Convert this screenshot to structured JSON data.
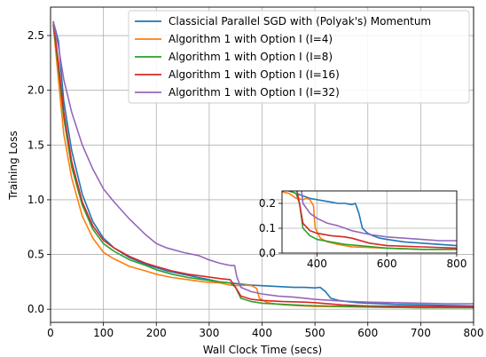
{
  "chart_data": {
    "type": "line",
    "title": "",
    "xlabel": "Wall Clock Time (secs)",
    "ylabel": "Training Loss",
    "xlim": [
      0,
      800
    ],
    "ylim": [
      -0.12,
      2.76
    ],
    "xticks": [
      0,
      100,
      200,
      300,
      400,
      500,
      600,
      700,
      800
    ],
    "yticks": [
      0.0,
      0.5,
      1.0,
      1.5,
      2.0,
      2.5
    ],
    "xtick_labels": [
      "0",
      "100",
      "200",
      "300",
      "400",
      "500",
      "600",
      "700",
      "800"
    ],
    "ytick_labels": [
      "0.0",
      "0.5",
      "1.0",
      "1.5",
      "2.0",
      "2.5"
    ],
    "grid": true,
    "legend": "top-right",
    "series": [
      {
        "name": "Classicial Parallel SGD with (Polyak's) Momentum",
        "color": "#1f77b4",
        "points": [
          [
            5,
            2.63
          ],
          [
            15,
            2.45
          ],
          [
            25,
            1.9
          ],
          [
            40,
            1.45
          ],
          [
            60,
            1.05
          ],
          [
            80,
            0.8
          ],
          [
            100,
            0.65
          ],
          [
            120,
            0.56
          ],
          [
            150,
            0.47
          ],
          [
            180,
            0.41
          ],
          [
            200,
            0.38
          ],
          [
            220,
            0.35
          ],
          [
            250,
            0.32
          ],
          [
            280,
            0.29
          ],
          [
            300,
            0.27
          ],
          [
            320,
            0.25
          ],
          [
            340,
            0.24
          ],
          [
            360,
            0.23
          ],
          [
            380,
            0.22
          ],
          [
            400,
            0.215
          ],
          [
            420,
            0.21
          ],
          [
            440,
            0.205
          ],
          [
            460,
            0.2
          ],
          [
            480,
            0.2
          ],
          [
            500,
            0.195
          ],
          [
            510,
            0.2
          ],
          [
            520,
            0.16
          ],
          [
            530,
            0.1
          ],
          [
            545,
            0.08
          ],
          [
            560,
            0.07
          ],
          [
            580,
            0.06
          ],
          [
            600,
            0.055
          ],
          [
            650,
            0.045
          ],
          [
            700,
            0.04
          ],
          [
            750,
            0.035
          ],
          [
            800,
            0.03
          ]
        ]
      },
      {
        "name": "Algorithm 1 with Option I (I=4)",
        "color": "#ff7f0e",
        "points": [
          [
            5,
            2.6
          ],
          [
            15,
            2.1
          ],
          [
            25,
            1.6
          ],
          [
            40,
            1.2
          ],
          [
            60,
            0.85
          ],
          [
            80,
            0.65
          ],
          [
            100,
            0.52
          ],
          [
            120,
            0.46
          ],
          [
            150,
            0.39
          ],
          [
            180,
            0.35
          ],
          [
            200,
            0.32
          ],
          [
            230,
            0.29
          ],
          [
            260,
            0.27
          ],
          [
            290,
            0.25
          ],
          [
            320,
            0.24
          ],
          [
            340,
            0.22
          ],
          [
            360,
            0.215
          ],
          [
            370,
            0.22
          ],
          [
            380,
            0.215
          ],
          [
            390,
            0.19
          ],
          [
            395,
            0.1
          ],
          [
            410,
            0.06
          ],
          [
            430,
            0.045
          ],
          [
            460,
            0.035
          ],
          [
            500,
            0.025
          ],
          [
            600,
            0.02
          ],
          [
            700,
            0.015
          ],
          [
            800,
            0.015
          ]
        ]
      },
      {
        "name": "Algorithm 1 with Option I (I=8)",
        "color": "#2ca02c",
        "points": [
          [
            5,
            2.6
          ],
          [
            15,
            2.2
          ],
          [
            25,
            1.75
          ],
          [
            40,
            1.3
          ],
          [
            60,
            0.95
          ],
          [
            80,
            0.73
          ],
          [
            100,
            0.6
          ],
          [
            120,
            0.53
          ],
          [
            150,
            0.45
          ],
          [
            180,
            0.4
          ],
          [
            200,
            0.36
          ],
          [
            230,
            0.32
          ],
          [
            260,
            0.29
          ],
          [
            290,
            0.27
          ],
          [
            320,
            0.25
          ],
          [
            340,
            0.24
          ],
          [
            350,
            0.2
          ],
          [
            360,
            0.1
          ],
          [
            380,
            0.07
          ],
          [
            400,
            0.055
          ],
          [
            440,
            0.045
          ],
          [
            480,
            0.035
          ],
          [
            520,
            0.03
          ],
          [
            600,
            0.02
          ],
          [
            700,
            0.015
          ],
          [
            800,
            0.015
          ]
        ]
      },
      {
        "name": "Algorithm 1 with Option I (I=16)",
        "color": "#d62728",
        "points": [
          [
            5,
            2.63
          ],
          [
            15,
            2.25
          ],
          [
            25,
            1.8
          ],
          [
            40,
            1.35
          ],
          [
            60,
            0.98
          ],
          [
            80,
            0.76
          ],
          [
            100,
            0.63
          ],
          [
            120,
            0.56
          ],
          [
            150,
            0.48
          ],
          [
            180,
            0.42
          ],
          [
            200,
            0.39
          ],
          [
            230,
            0.35
          ],
          [
            260,
            0.32
          ],
          [
            290,
            0.3
          ],
          [
            320,
            0.28
          ],
          [
            340,
            0.27
          ],
          [
            350,
            0.2
          ],
          [
            360,
            0.12
          ],
          [
            380,
            0.09
          ],
          [
            400,
            0.08
          ],
          [
            440,
            0.07
          ],
          [
            480,
            0.065
          ],
          [
            500,
            0.06
          ],
          [
            550,
            0.04
          ],
          [
            600,
            0.03
          ],
          [
            700,
            0.025
          ],
          [
            800,
            0.02
          ]
        ]
      },
      {
        "name": "Algorithm 1 with Option I (I=32)",
        "color": "#9467bd",
        "points": [
          [
            5,
            2.63
          ],
          [
            15,
            2.4
          ],
          [
            25,
            2.1
          ],
          [
            40,
            1.8
          ],
          [
            60,
            1.5
          ],
          [
            80,
            1.28
          ],
          [
            100,
            1.1
          ],
          [
            120,
            0.98
          ],
          [
            150,
            0.82
          ],
          [
            180,
            0.68
          ],
          [
            200,
            0.6
          ],
          [
            220,
            0.56
          ],
          [
            250,
            0.52
          ],
          [
            280,
            0.49
          ],
          [
            300,
            0.45
          ],
          [
            320,
            0.42
          ],
          [
            340,
            0.4
          ],
          [
            348,
            0.4
          ],
          [
            352,
            0.3
          ],
          [
            360,
            0.2
          ],
          [
            380,
            0.16
          ],
          [
            400,
            0.14
          ],
          [
            430,
            0.12
          ],
          [
            460,
            0.11
          ],
          [
            500,
            0.09
          ],
          [
            550,
            0.075
          ],
          [
            600,
            0.065
          ],
          [
            650,
            0.06
          ],
          [
            700,
            0.055
          ],
          [
            750,
            0.05
          ],
          [
            800,
            0.05
          ]
        ]
      }
    ],
    "inset": {
      "xlim": [
        300,
        800
      ],
      "ylim": [
        0.0,
        0.25
      ],
      "xticks": [
        400,
        600,
        800
      ],
      "yticks": [
        0.0,
        0.1,
        0.2
      ],
      "xtick_labels": [
        "400",
        "600",
        "800"
      ],
      "ytick_labels": [
        "0.0",
        "0.1",
        "0.2"
      ]
    }
  }
}
